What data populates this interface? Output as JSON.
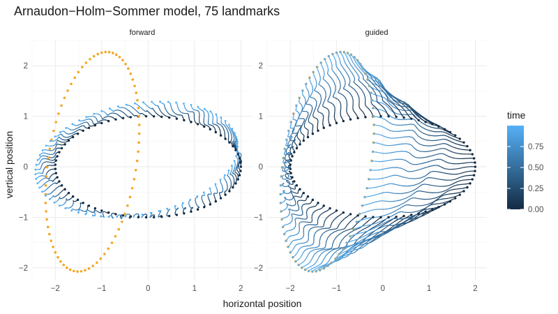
{
  "chart_data": {
    "type": "line",
    "title": "Arnaudon−Holm−Sommer model, 75 landmarks",
    "xlabel": "horizontal position",
    "ylabel": "vertical position",
    "xlim": [
      -2.5,
      2.25
    ],
    "ylim": [
      -2.25,
      2.5
    ],
    "x_ticks": [
      -2,
      -1,
      0,
      1,
      2
    ],
    "y_ticks": [
      -2,
      -1,
      0,
      1,
      2
    ],
    "x_tick_labels": [
      "−2",
      "−1",
      "0",
      "1",
      "2"
    ],
    "y_tick_labels": [
      "−2",
      "−1",
      "0",
      "1",
      "2"
    ],
    "grid": true,
    "landmarks": 75,
    "start_shape": {
      "type": "ellipse",
      "center": [
        0,
        0
      ],
      "rx": 2.0,
      "ry": 1.0,
      "rotation_deg": 0
    },
    "target_shape": {
      "type": "ellipse",
      "center": [
        -1.2,
        0.1
      ],
      "rx": 0.95,
      "ry": 2.2,
      "rotation_deg": -10,
      "color": "#f5a623"
    },
    "forward_end_shape": {
      "type": "ellipse",
      "center": [
        -0.25,
        0.15
      ],
      "rx": 2.2,
      "ry": 1.1,
      "rotation_deg": 9
    },
    "color_scale": {
      "name": "time",
      "low_color": "#132b43",
      "high_color": "#56b1f7",
      "ticks": [
        0.0,
        0.25,
        0.5,
        0.75
      ],
      "tick_labels": [
        "0.00",
        "0.25",
        "0.50",
        "0.75"
      ],
      "limits": [
        0,
        1
      ]
    },
    "panels": [
      {
        "name": "forward",
        "type": "forward"
      },
      {
        "name": "guided",
        "type": "guided"
      }
    ]
  }
}
